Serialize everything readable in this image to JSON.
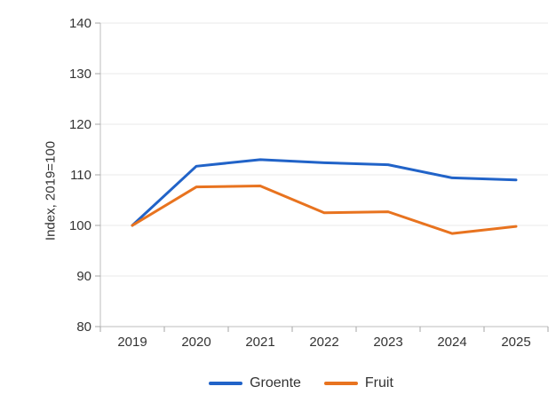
{
  "chart_data": {
    "type": "line",
    "title": "",
    "categories": [
      "2019",
      "2020",
      "2021",
      "2022",
      "2023",
      "2024",
      "2025"
    ],
    "series": [
      {
        "name": "Groente",
        "color": "#2163c8",
        "values": [
          100,
          111.7,
          113,
          112.4,
          112,
          109.4,
          109
        ]
      },
      {
        "name": "Fruit",
        "color": "#e8731f",
        "values": [
          100,
          107.6,
          107.8,
          102.5,
          102.7,
          98.4,
          99.8
        ]
      }
    ],
    "xlabel": "",
    "ylabel": "Index, 2019=100",
    "ylim": [
      80,
      140
    ],
    "yticks": [
      80,
      90,
      100,
      110,
      120,
      130,
      140
    ],
    "grid": "horizontal",
    "legend_position": "bottom",
    "style": {
      "background": "#ffffff",
      "grid_color": "#e8e8e8",
      "axis_color": "#bdbdbd",
      "tick_color": "#a6a6a6",
      "text_color": "#333333",
      "line_width": 3,
      "tick_font_size": 15
    }
  },
  "legend": {
    "items": [
      {
        "label": "Groente"
      },
      {
        "label": "Fruit"
      }
    ]
  }
}
